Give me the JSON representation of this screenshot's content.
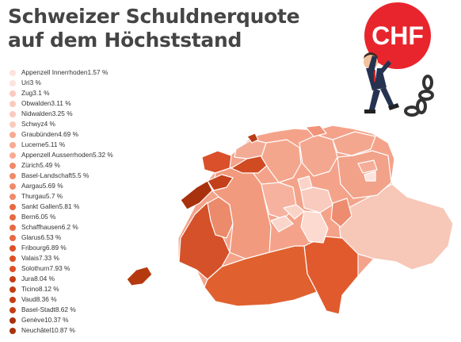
{
  "title": {
    "line1": "Schweizer Schuldnerquote",
    "line2": "auf dem Höchststand"
  },
  "illustration": {
    "ball_text": "CHF",
    "ball_color": "#e8252d"
  },
  "colors": {
    "scale": [
      "#fde2dd",
      "#fbcabe",
      "#f8aa93",
      "#f08a68",
      "#e66a42",
      "#dc4f25",
      "#c43e15",
      "#a8320d"
    ]
  },
  "legend": [
    {
      "name": "Appenzell Innerrhoden",
      "value": "1.57 %"
    },
    {
      "name": "Uri",
      "value": "3 %"
    },
    {
      "name": "Zug",
      "value": "3.1 %"
    },
    {
      "name": "Obwalden",
      "value": "3.11 %"
    },
    {
      "name": "Nidwalden",
      "value": "3.25 %"
    },
    {
      "name": "Schwyz",
      "value": "4 %"
    },
    {
      "name": "Graubünden",
      "value": "4.69 %"
    },
    {
      "name": "Lucerne",
      "value": "5.11 %"
    },
    {
      "name": "Appenzell Ausserrhoden",
      "value": "5.32 %"
    },
    {
      "name": "Zürich",
      "value": "5.49 %"
    },
    {
      "name": "Basel-Landschaft",
      "value": "5.5 %"
    },
    {
      "name": "Aargau",
      "value": "5.69 %"
    },
    {
      "name": "Thurgau",
      "value": "5.7 %"
    },
    {
      "name": "Sankt Gallen",
      "value": "5.81 %"
    },
    {
      "name": "Bern",
      "value": "6.05 %"
    },
    {
      "name": "Schaffhausen",
      "value": "6.2 %"
    },
    {
      "name": "Glarus",
      "value": "6.53 %"
    },
    {
      "name": "Fribourg",
      "value": "6.89 %"
    },
    {
      "name": "Valais",
      "value": "7.33 %"
    },
    {
      "name": "Solothurn",
      "value": "7.93 %"
    },
    {
      "name": "Jura",
      "value": "8.04 %"
    },
    {
      "name": "Ticino",
      "value": "8.12 %"
    },
    {
      "name": "Vaud",
      "value": "8.36 %"
    },
    {
      "name": "Basel-Stadt",
      "value": "8.62 %"
    },
    {
      "name": "Genève",
      "value": "10.37 %"
    },
    {
      "name": "Neuchâtel",
      "value": "10.87 %"
    }
  ]
}
